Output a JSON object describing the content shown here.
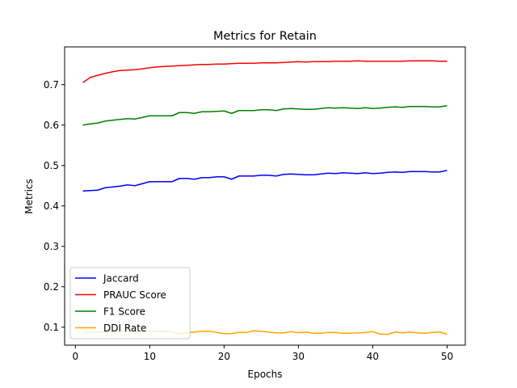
{
  "chart_data": {
    "type": "line",
    "title": "Metrics for Retain",
    "xlabel": "Epochs",
    "ylabel": "Metrics",
    "xlim": [
      -1.45,
      52.45
    ],
    "ylim": [
      0.0555,
      0.7935
    ],
    "xticks": [
      0,
      10,
      20,
      30,
      40,
      50
    ],
    "yticks": [
      0.1,
      0.2,
      0.3,
      0.4,
      0.5,
      0.6,
      0.7
    ],
    "legend_position": "lower-left",
    "grid": false,
    "x": [
      1,
      2,
      3,
      4,
      5,
      6,
      7,
      8,
      9,
      10,
      11,
      12,
      13,
      14,
      15,
      16,
      17,
      18,
      19,
      20,
      21,
      22,
      23,
      24,
      25,
      26,
      27,
      28,
      29,
      30,
      31,
      32,
      33,
      34,
      35,
      36,
      37,
      38,
      39,
      40,
      41,
      42,
      43,
      44,
      45,
      46,
      47,
      48,
      49,
      50
    ],
    "series": [
      {
        "name": "Jaccard",
        "color": "#0000ff",
        "values": [
          0.437,
          0.438,
          0.439,
          0.445,
          0.447,
          0.449,
          0.452,
          0.45,
          0.455,
          0.46,
          0.46,
          0.46,
          0.46,
          0.468,
          0.468,
          0.466,
          0.47,
          0.47,
          0.472,
          0.472,
          0.466,
          0.474,
          0.474,
          0.474,
          0.476,
          0.476,
          0.474,
          0.478,
          0.479,
          0.478,
          0.477,
          0.477,
          0.479,
          0.481,
          0.48,
          0.482,
          0.481,
          0.48,
          0.482,
          0.48,
          0.481,
          0.483,
          0.484,
          0.483,
          0.485,
          0.485,
          0.485,
          0.484,
          0.484,
          0.488
        ]
      },
      {
        "name": "PRAUC Score",
        "color": "#ff0000",
        "values": [
          0.705,
          0.718,
          0.723,
          0.728,
          0.732,
          0.735,
          0.736,
          0.737,
          0.739,
          0.742,
          0.744,
          0.745,
          0.746,
          0.747,
          0.748,
          0.749,
          0.75,
          0.75,
          0.751,
          0.751,
          0.752,
          0.753,
          0.753,
          0.753,
          0.754,
          0.754,
          0.754,
          0.755,
          0.756,
          0.757,
          0.756,
          0.757,
          0.757,
          0.757,
          0.758,
          0.758,
          0.758,
          0.759,
          0.758,
          0.758,
          0.758,
          0.758,
          0.758,
          0.758,
          0.759,
          0.759,
          0.759,
          0.759,
          0.758,
          0.758
        ]
      },
      {
        "name": "F1 Score",
        "color": "#008000",
        "values": [
          0.6,
          0.603,
          0.605,
          0.61,
          0.612,
          0.614,
          0.616,
          0.615,
          0.619,
          0.623,
          0.623,
          0.623,
          0.623,
          0.631,
          0.631,
          0.629,
          0.633,
          0.633,
          0.634,
          0.635,
          0.629,
          0.636,
          0.636,
          0.636,
          0.638,
          0.638,
          0.636,
          0.64,
          0.641,
          0.64,
          0.639,
          0.639,
          0.641,
          0.643,
          0.642,
          0.643,
          0.642,
          0.641,
          0.643,
          0.641,
          0.642,
          0.644,
          0.645,
          0.644,
          0.646,
          0.646,
          0.646,
          0.645,
          0.645,
          0.648
        ]
      },
      {
        "name": "DDI Rate",
        "color": "#ffa500",
        "values": [
          0.088,
          0.087,
          0.088,
          0.088,
          0.089,
          0.089,
          0.089,
          0.09,
          0.09,
          0.09,
          0.09,
          0.09,
          0.089,
          0.083,
          0.086,
          0.088,
          0.09,
          0.09,
          0.087,
          0.084,
          0.084,
          0.087,
          0.087,
          0.091,
          0.09,
          0.088,
          0.086,
          0.086,
          0.089,
          0.086,
          0.088,
          0.085,
          0.085,
          0.087,
          0.087,
          0.085,
          0.085,
          0.086,
          0.087,
          0.089,
          0.083,
          0.082,
          0.088,
          0.086,
          0.088,
          0.086,
          0.085,
          0.087,
          0.088,
          0.083
        ]
      }
    ]
  }
}
